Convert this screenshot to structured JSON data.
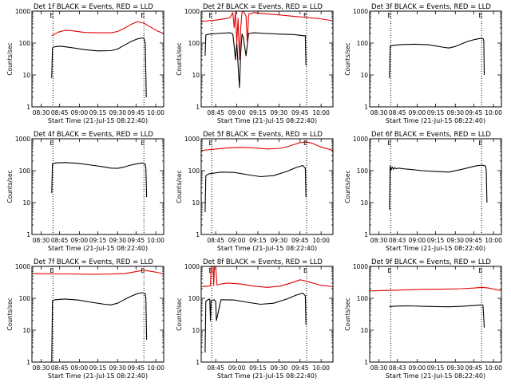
{
  "colors": {
    "background": "#ffffff",
    "axes": "#000000",
    "events": "#000000",
    "lld": "#e00000"
  },
  "chart_data": [
    {
      "type": "line",
      "title": "Det 1f BLACK = Events, RED = LLD",
      "xlabel": "Start Time (21-Jul-15 08:22:40)",
      "ylabel": "Counts/sec",
      "ylog": true,
      "ylim": [
        1,
        1000
      ],
      "yticks": [
        "1",
        "10",
        "100",
        "1000"
      ],
      "xlim": [
        0,
        100
      ],
      "xticks": [
        "08:30",
        "08:45",
        "09:00",
        "09:15",
        "09:30",
        "09:45",
        "10:00"
      ],
      "xtick_pos": [
        7,
        21,
        36,
        50,
        65,
        79,
        94
      ],
      "vlines": [
        16,
        85
      ],
      "top_labels": [
        "E",
        "E"
      ],
      "series": [
        {
          "color": "#000000",
          "x": [
            15,
            15.6,
            16.5,
            19,
            22,
            30,
            40,
            50,
            60,
            65,
            70,
            75,
            80,
            84,
            85,
            86,
            86.5,
            86.8
          ],
          "y": [
            8,
            70,
            75,
            78,
            80,
            72,
            62,
            57,
            58,
            65,
            85,
            110,
            135,
            145,
            140,
            100,
            10,
            2
          ]
        },
        {
          "color": "#e00000",
          "x": [
            15,
            20,
            25,
            30,
            40,
            50,
            60,
            65,
            70,
            75,
            80,
            85,
            90,
            95,
            100
          ],
          "y": [
            170,
            220,
            250,
            245,
            215,
            210,
            210,
            230,
            290,
            380,
            470,
            420,
            320,
            240,
            200
          ]
        }
      ]
    },
    {
      "type": "line",
      "title": "Det 2f BLACK = Events, RED = LLD",
      "xlabel": "Start Time (21-Jul-15 08:22:40)",
      "ylabel": "Counts/sec",
      "ylog": true,
      "ylim": [
        1,
        1000
      ],
      "yticks": [
        "1",
        "10",
        "100",
        "1000"
      ],
      "xlim": [
        0,
        100
      ],
      "xticks": [
        "08:45",
        "09:00",
        "09:15",
        "09:30",
        "09:45",
        "10:00"
      ],
      "xtick_pos": [
        11,
        27,
        43,
        59,
        75,
        91
      ],
      "vlines": [
        8,
        80
      ],
      "top_labels": [
        "E",
        "E"
      ],
      "series": [
        {
          "color": "#000000",
          "x": [
            3,
            3.5,
            6,
            12,
            22,
            24,
            25,
            26,
            27,
            28,
            29,
            30,
            31,
            32,
            34,
            36,
            40,
            50,
            60,
            70,
            78,
            79,
            79.5
          ],
          "y": [
            40,
            180,
            190,
            200,
            210,
            190,
            80,
            30,
            100,
            20,
            4,
            50,
            190,
            150,
            40,
            200,
            210,
            200,
            190,
            185,
            170,
            170,
            20
          ]
        },
        {
          "color": "#e00000",
          "x": [
            0,
            10,
            20,
            22,
            24,
            25,
            26,
            27,
            28,
            29,
            30,
            31,
            32,
            34,
            35,
            36,
            40,
            50,
            60,
            70,
            80,
            90,
            100
          ],
          "y": [
            480,
            520,
            600,
            640,
            900,
            300,
            1000,
            100,
            600,
            30,
            300,
            900,
            1000,
            700,
            100,
            800,
            900,
            820,
            760,
            690,
            640,
            580,
            500
          ]
        }
      ]
    },
    {
      "type": "line",
      "title": "Det 3f BLACK = Events, RED = LLD",
      "xlabel": "Start Time (21-Jul-15 08:22:40)",
      "ylabel": "Counts/sec",
      "ylog": true,
      "ylim": [
        1,
        1000
      ],
      "yticks": [
        "1",
        "10",
        "100",
        "1000"
      ],
      "xlim": [
        0,
        100
      ],
      "xticks": [
        "08:30",
        "08:45",
        "09:00",
        "09:15",
        "09:30",
        "09:45",
        "10:00"
      ],
      "xtick_pos": [
        7,
        21,
        36,
        50,
        65,
        79,
        94
      ],
      "vlines": [
        16,
        85
      ],
      "top_labels": [
        "E",
        "E"
      ],
      "series": [
        {
          "color": "#000000",
          "x": [
            15,
            15.6,
            18,
            25,
            35,
            45,
            55,
            60,
            65,
            70,
            75,
            80,
            84,
            86,
            86.6,
            87
          ],
          "y": [
            8,
            80,
            85,
            90,
            92,
            88,
            75,
            70,
            78,
            95,
            115,
            130,
            140,
            140,
            120,
            10
          ]
        }
      ]
    },
    {
      "type": "line",
      "title": "Det 4f BLACK = Events, RED = LLD",
      "xlabel": "Start Time (21-Jul-15 08:22:40)",
      "ylabel": "Counts/sec",
      "ylog": true,
      "ylim": [
        1,
        1000
      ],
      "yticks": [
        "1",
        "10",
        "100",
        "1000"
      ],
      "xlim": [
        0,
        100
      ],
      "xticks": [
        "08:30",
        "08:45",
        "09:00",
        "09:15",
        "09:30",
        "09:45",
        "10:00"
      ],
      "xtick_pos": [
        7,
        21,
        36,
        50,
        65,
        79,
        94
      ],
      "vlines": [
        16,
        85
      ],
      "top_labels": [
        "E",
        "E"
      ],
      "series": [
        {
          "color": "#000000",
          "x": [
            15,
            15.6,
            18,
            25,
            35,
            45,
            55,
            60,
            65,
            70,
            75,
            80,
            84,
            86,
            86.5,
            87
          ],
          "y": [
            20,
            165,
            175,
            180,
            170,
            150,
            130,
            120,
            118,
            130,
            150,
            165,
            175,
            160,
            120,
            15
          ]
        }
      ]
    },
    {
      "type": "line",
      "title": "Det 5f BLACK = Events, RED = LLD",
      "xlabel": "Start Time (21-Jul-15 08:22:40)",
      "ylabel": "Counts/sec",
      "ylog": true,
      "ylim": [
        1,
        1000
      ],
      "yticks": [
        "1",
        "10",
        "100",
        "1000"
      ],
      "xlim": [
        0,
        100
      ],
      "xticks": [
        "08:45",
        "09:00",
        "09:15",
        "09:30",
        "09:45",
        "10:00"
      ],
      "xtick_pos": [
        11,
        27,
        43,
        59,
        75,
        91
      ],
      "vlines": [
        8,
        80
      ],
      "top_labels": [
        "E",
        "E"
      ],
      "series": [
        {
          "color": "#000000",
          "x": [
            3,
            3.5,
            6,
            15,
            25,
            35,
            45,
            55,
            65,
            72,
            77,
            79,
            79.5
          ],
          "y": [
            5,
            70,
            80,
            90,
            88,
            75,
            65,
            70,
            95,
            125,
            145,
            120,
            15
          ]
        },
        {
          "color": "#e00000",
          "x": [
            0,
            10,
            20,
            30,
            40,
            50,
            60,
            65,
            70,
            75,
            80,
            85,
            90,
            100
          ],
          "y": [
            430,
            470,
            520,
            540,
            520,
            480,
            500,
            560,
            650,
            760,
            800,
            700,
            570,
            430
          ]
        }
      ]
    },
    {
      "type": "line",
      "title": "Det 6f BLACK = Events, RED = LLD",
      "xlabel": "Start Time (21-Jul-15 08:22:40)",
      "ylabel": "Counts/sec",
      "ylog": true,
      "ylim": [
        1,
        1000
      ],
      "yticks": [
        "1",
        "10",
        "100",
        "1000"
      ],
      "xlim": [
        0,
        100
      ],
      "xticks": [
        "08:30",
        "08:43",
        "09:00",
        "09:15",
        "09:30",
        "09:45",
        "10:00"
      ],
      "xtick_pos": [
        7,
        21,
        36,
        50,
        65,
        79,
        94
      ],
      "vlines": [
        16,
        85
      ],
      "top_labels": [
        "E",
        "E"
      ],
      "series": [
        {
          "color": "#000000",
          "x": [
            15,
            15.5,
            16,
            17,
            18,
            19,
            20,
            22,
            25,
            30,
            40,
            50,
            60,
            70,
            80,
            85,
            88,
            88.5,
            89
          ],
          "y": [
            6,
            140,
            100,
            130,
            110,
            125,
            115,
            120,
            115,
            110,
            100,
            95,
            90,
            110,
            140,
            150,
            140,
            100,
            10
          ]
        }
      ]
    },
    {
      "type": "line",
      "title": "Det 7f BLACK = Events, RED = LLD",
      "xlabel": "Start Time (21-Jul-15 08:22:40)",
      "ylabel": "Counts/sec",
      "ylog": true,
      "ylim": [
        1,
        1000
      ],
      "yticks": [
        "1",
        "10",
        "100",
        "1000"
      ],
      "xlim": [
        0,
        100
      ],
      "xticks": [
        "08:30",
        "08:45",
        "09:00",
        "09:15",
        "09:30",
        "09:45",
        "10:00"
      ],
      "xtick_pos": [
        7,
        21,
        36,
        50,
        65,
        79,
        94
      ],
      "vlines": [
        16,
        85
      ],
      "top_labels": [
        "E",
        "E"
      ],
      "series": [
        {
          "color": "#000000",
          "x": [
            15,
            15.6,
            18,
            25,
            35,
            45,
            55,
            60,
            65,
            70,
            75,
            80,
            84,
            86,
            86.5,
            87
          ],
          "y": [
            1,
            85,
            90,
            95,
            88,
            75,
            65,
            62,
            70,
            90,
            115,
            140,
            150,
            140,
            100,
            5
          ]
        },
        {
          "color": "#e00000",
          "x": [
            0,
            10,
            20,
            30,
            40,
            50,
            60,
            70,
            75,
            80,
            85,
            90,
            95,
            100
          ],
          "y": [
            600,
            590,
            580,
            580,
            570,
            570,
            575,
            600,
            640,
            700,
            760,
            700,
            650,
            580
          ]
        }
      ]
    },
    {
      "type": "line",
      "title": "Det 8f BLACK = Events, RED = LLD",
      "xlabel": "Start Time (21-Jul-15 08:22:40)",
      "ylabel": "Counts/sec",
      "ylog": true,
      "ylim": [
        1,
        1000
      ],
      "yticks": [
        "1",
        "10",
        "100",
        "1000"
      ],
      "xlim": [
        0,
        100
      ],
      "xticks": [
        "08:45",
        "09:00",
        "09:15",
        "09:30",
        "09:45",
        "10:00"
      ],
      "xtick_pos": [
        11,
        27,
        43,
        59,
        75,
        91
      ],
      "vlines": [
        8,
        80
      ],
      "top_labels": [
        "E",
        "E"
      ],
      "series": [
        {
          "color": "#000000",
          "x": [
            3,
            3.5,
            5,
            6.5,
            7,
            7.5,
            10,
            11,
            11.5,
            15,
            25,
            35,
            45,
            55,
            65,
            72,
            77,
            79,
            79.5
          ],
          "y": [
            2,
            80,
            90,
            95,
            20,
            85,
            90,
            80,
            20,
            90,
            88,
            75,
            65,
            70,
            95,
            125,
            145,
            120,
            15
          ]
        },
        {
          "color": "#e00000",
          "x": [
            0,
            5,
            7,
            7.5,
            9,
            9.5,
            10,
            11,
            12,
            15,
            20,
            30,
            40,
            50,
            60,
            70,
            75,
            80,
            90,
            100
          ],
          "y": [
            230,
            240,
            250,
            1000,
            1000,
            250,
            1000,
            1000,
            260,
            280,
            300,
            280,
            240,
            220,
            240,
            320,
            380,
            340,
            260,
            230
          ]
        }
      ]
    },
    {
      "type": "line",
      "title": "Det 9f BLACK = Events, RED = LLD",
      "xlabel": "Start Time (21-Jul-15 08:22:40)",
      "ylabel": "Counts/sec",
      "ylog": true,
      "ylim": [
        1,
        1000
      ],
      "yticks": [
        "1",
        "10",
        "100",
        "1000"
      ],
      "xlim": [
        0,
        100
      ],
      "xticks": [
        "08:30",
        "08:43",
        "09:00",
        "09:15",
        "09:30",
        "09:45",
        "10:00"
      ],
      "xtick_pos": [
        7,
        21,
        36,
        50,
        65,
        79,
        94
      ],
      "vlines": [
        16,
        85
      ],
      "top_labels": [
        "E",
        "E"
      ],
      "series": [
        {
          "color": "#000000",
          "x": [
            15,
            20,
            30,
            40,
            50,
            60,
            70,
            80,
            85,
            86,
            86.5,
            87
          ],
          "y": [
            55,
            57,
            58,
            56,
            55,
            54,
            56,
            60,
            62,
            60,
            30,
            12
          ]
        },
        {
          "color": "#e00000",
          "x": [
            0,
            10,
            20,
            30,
            40,
            50,
            60,
            70,
            80,
            85,
            90,
            95,
            100
          ],
          "y": [
            170,
            175,
            180,
            185,
            190,
            192,
            195,
            200,
            210,
            220,
            210,
            190,
            175
          ]
        }
      ]
    }
  ]
}
